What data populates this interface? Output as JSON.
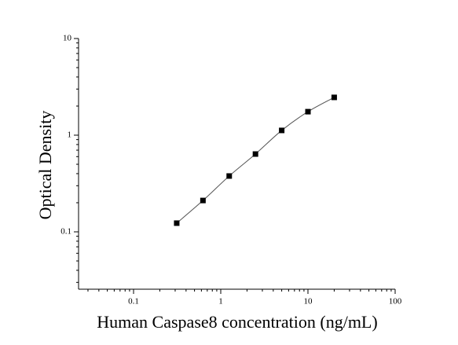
{
  "chart_data": {
    "type": "scatter",
    "x_label": "Human Caspase8 concentration (ng/mL)",
    "y_label": "Optical Density",
    "x": [
      0.3125,
      0.625,
      1.25,
      2.5,
      5,
      10,
      20
    ],
    "values": [
      0.123,
      0.211,
      0.378,
      0.638,
      1.12,
      1.75,
      2.46
    ],
    "color": "#000000",
    "line_color": "#555555",
    "xlog": true,
    "ylog": true,
    "xlim": [
      0.0234,
      100
    ],
    "ylim": [
      0.0255,
      10
    ],
    "xticks": [
      0.1,
      1,
      10,
      100
    ],
    "yticks": [
      0.1,
      1,
      10
    ]
  }
}
